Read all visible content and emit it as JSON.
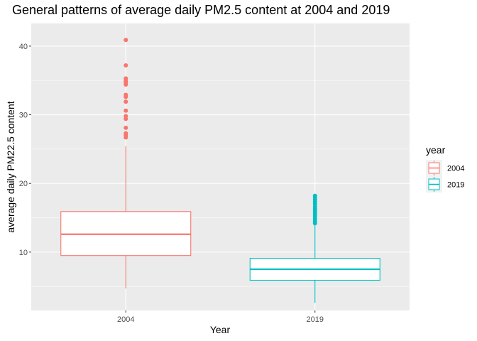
{
  "chart_data": {
    "type": "boxplot",
    "title": "General patterns of average daily PM2.5 content at 2004 and 2019",
    "xlabel": "Year",
    "ylabel": "average daily PM22.5 content",
    "categories": [
      "2004",
      "2019"
    ],
    "ylim": [
      1.5,
      43.3
    ],
    "yticks": [
      10,
      20,
      30,
      40
    ],
    "grid": true,
    "legend": {
      "title": "year",
      "position": "right",
      "entries": [
        "2004",
        "2019"
      ]
    },
    "colors": {
      "2004": "#F8766D",
      "2019": "#00BFC4"
    },
    "series": [
      {
        "name": "2004",
        "min": 4.7,
        "q1": 9.5,
        "median": 12.6,
        "q3": 15.9,
        "max": 25.4,
        "outliers": [
          26.7,
          27.0,
          27.3,
          28.1,
          29.4,
          29.8,
          30.6,
          31.9,
          32.6,
          32.9,
          34.4,
          34.7,
          35.0,
          35.3,
          37.2,
          40.9
        ]
      },
      {
        "name": "2019",
        "min": 2.6,
        "q1": 5.9,
        "median": 7.5,
        "q3": 9.1,
        "max": 14.0,
        "outliers": [
          14.2,
          14.5,
          14.8,
          15.1,
          15.4,
          15.7,
          16.0,
          16.3,
          16.6,
          17.0,
          17.3,
          17.6,
          17.9,
          18.2
        ]
      }
    ]
  }
}
